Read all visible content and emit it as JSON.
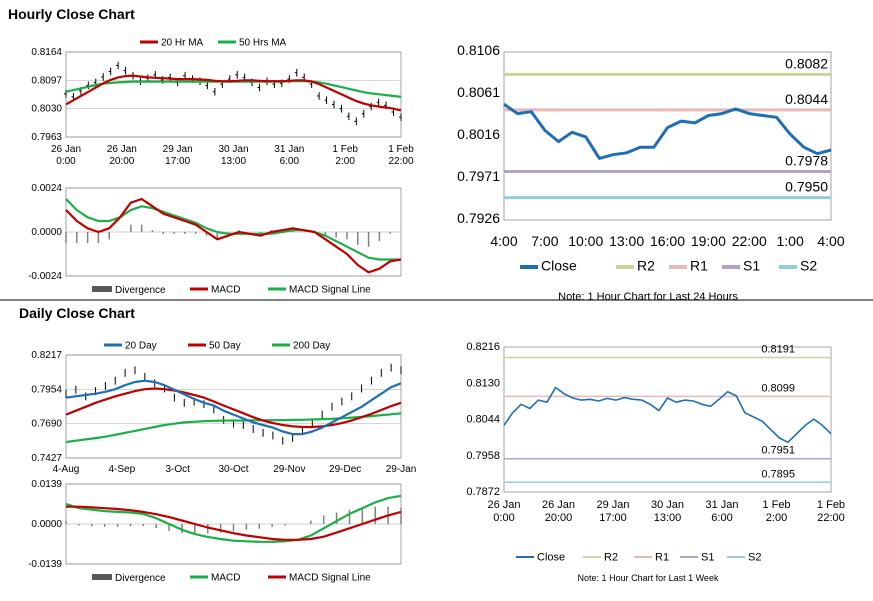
{
  "sections": {
    "hourly_title": "Hourly Close Chart",
    "daily_title": "Daily Close Chart"
  },
  "colors": {
    "red": "#c00000",
    "green": "#1aaf48",
    "blue": "#1f6fb4",
    "r2": "#c3d69b",
    "r1": "#e6b9b8",
    "s1": "#b3a2c7",
    "s2": "#93cddd",
    "gray": "#808080",
    "grid": "#bfbfbf"
  },
  "chart_data": [
    {
      "id": "hourly-price",
      "type": "line",
      "legend": [
        "20 Hr MA",
        "50 Hrs MA"
      ],
      "yticks": [
        "0.8164",
        "0.8097",
        "0.8030",
        "0.7963"
      ],
      "ylim": [
        0.7963,
        0.8164
      ],
      "xticks": [
        [
          "26 Jan",
          "0:00"
        ],
        [
          "26 Jan",
          "20:00"
        ],
        [
          "29 Jan",
          "17:00"
        ],
        [
          "30 Jan",
          "13:00"
        ],
        [
          "31 Jan",
          "6:00"
        ],
        [
          "1 Feb",
          "2:00"
        ],
        [
          "1 Feb",
          "22:00"
        ]
      ],
      "close": [
        0.8065,
        0.8058,
        0.8072,
        0.8085,
        0.8092,
        0.8105,
        0.8118,
        0.8132,
        0.812,
        0.8108,
        0.8095,
        0.8102,
        0.811,
        0.8098,
        0.8104,
        0.8092,
        0.8108,
        0.81,
        0.8095,
        0.8085,
        0.807,
        0.8088,
        0.81,
        0.811,
        0.8104,
        0.8092,
        0.808,
        0.8095,
        0.8088,
        0.809,
        0.81,
        0.8115,
        0.8104,
        0.8088,
        0.806,
        0.805,
        0.804,
        0.803,
        0.8012,
        0.8,
        0.8018,
        0.8035,
        0.8045,
        0.8038,
        0.8022,
        0.801
      ],
      "ma20": [
        0.804,
        0.805,
        0.806,
        0.807,
        0.808,
        0.809,
        0.8098,
        0.8104,
        0.8107,
        0.8108,
        0.8106,
        0.8104,
        0.8103,
        0.8102,
        0.8101,
        0.81,
        0.81,
        0.81,
        0.8099,
        0.8098,
        0.8096,
        0.8095,
        0.8095,
        0.8096,
        0.8097,
        0.8097,
        0.8096,
        0.8095,
        0.8095,
        0.8095,
        0.8096,
        0.8097,
        0.8097,
        0.8094,
        0.8088,
        0.808,
        0.8072,
        0.8064,
        0.8056,
        0.8048,
        0.8042,
        0.8038,
        0.8035,
        0.8033,
        0.803,
        0.8026
      ],
      "ma50": [
        0.807,
        0.8074,
        0.8078,
        0.8082,
        0.8086,
        0.8089,
        0.8091,
        0.8092,
        0.8093,
        0.8094,
        0.8094,
        0.8094,
        0.8094,
        0.8094,
        0.8094,
        0.8094,
        0.8094,
        0.8094,
        0.8094,
        0.8094,
        0.8094,
        0.8094,
        0.8094,
        0.8094,
        0.8094,
        0.8094,
        0.8094,
        0.8094,
        0.8094,
        0.8094,
        0.8095,
        0.8095,
        0.8095,
        0.8094,
        0.8092,
        0.8089,
        0.8085,
        0.8081,
        0.8077,
        0.8073,
        0.8069,
        0.8066,
        0.8064,
        0.8062,
        0.806,
        0.8058
      ]
    },
    {
      "id": "hourly-macd",
      "type": "line",
      "legend": [
        "Divergence",
        "MACD",
        "MACD Signal Line"
      ],
      "yticks": [
        "0.0024",
        "0.0000",
        "-0.0024"
      ],
      "ylim": [
        -0.0024,
        0.0024
      ],
      "macd": [
        0.0012,
        0.0006,
        0.0002,
        0.0,
        0.0002,
        0.0008,
        0.0016,
        0.0018,
        0.0014,
        0.001,
        0.0008,
        0.0006,
        0.0004,
        0.0,
        -0.0004,
        -0.0002,
        0.0,
        -0.0001,
        -0.0002,
        0.0,
        0.0001,
        0.0002,
        0.0001,
        0.0,
        -0.0004,
        -0.0008,
        -0.0012,
        -0.0018,
        -0.0022,
        -0.002,
        -0.0016,
        -0.0015
      ],
      "signal": [
        0.0018,
        0.0012,
        0.0008,
        0.0006,
        0.0006,
        0.0008,
        0.0012,
        0.0014,
        0.0013,
        0.0011,
        0.0009,
        0.0007,
        0.0005,
        0.0002,
        0.0,
        -0.0001,
        -0.0001,
        -0.0001,
        -0.0001,
        -0.0001,
        0.0,
        0.0001,
        0.0001,
        0.0,
        -0.0002,
        -0.0005,
        -0.0008,
        -0.0011,
        -0.0014,
        -0.0015,
        -0.0015,
        -0.0015
      ]
    },
    {
      "id": "hourly-24h",
      "type": "line",
      "yticks": [
        "0.8106",
        "0.8061",
        "0.8016",
        "0.7971",
        "0.7926"
      ],
      "ylim": [
        0.7926,
        0.8106
      ],
      "xticks": [
        "4:00",
        "7:00",
        "10:00",
        "13:00",
        "16:00",
        "19:00",
        "22:00",
        "1:00",
        "4:00"
      ],
      "close": [
        0.805,
        0.804,
        0.8042,
        0.8022,
        0.801,
        0.802,
        0.8015,
        0.7992,
        0.7996,
        0.7998,
        0.8004,
        0.8004,
        0.8025,
        0.8032,
        0.803,
        0.8038,
        0.804,
        0.8045,
        0.804,
        0.8038,
        0.8036,
        0.8018,
        0.8004,
        0.7997,
        0.8001
      ],
      "levels": [
        {
          "name": "R2",
          "value": 0.8082,
          "label": "0.8082",
          "color": "#c3d69b"
        },
        {
          "name": "R1",
          "value": 0.8044,
          "label": "0.8044",
          "color": "#e6b9b8"
        },
        {
          "name": "S1",
          "value": 0.7978,
          "label": "0.7978",
          "color": "#b3a2c7"
        },
        {
          "name": "S2",
          "value": 0.795,
          "label": "0.7950",
          "color": "#93cddd"
        }
      ],
      "legend": [
        "Close",
        "R2",
        "R1",
        "S1",
        "S2"
      ],
      "note": "Note: 1 Hour Chart for Last 24 Hours"
    },
    {
      "id": "daily-price",
      "type": "line",
      "legend": [
        "20 Day",
        "50 Day",
        "200 Day"
      ],
      "yticks": [
        "0.8217",
        "0.7954",
        "0.7690",
        "0.7427"
      ],
      "ylim": [
        0.7427,
        0.8217
      ],
      "xticks": [
        "4-Aug",
        "4-Sep",
        "3-Oct",
        "30-Oct",
        "29-Nov",
        "29-Dec",
        "29-Jan"
      ],
      "close": [
        0.792,
        0.795,
        0.79,
        0.794,
        0.798,
        0.802,
        0.808,
        0.81,
        0.805,
        0.8,
        0.796,
        0.789,
        0.785,
        0.786,
        0.784,
        0.78,
        0.772,
        0.769,
        0.768,
        0.765,
        0.762,
        0.76,
        0.756,
        0.758,
        0.764,
        0.77,
        0.776,
        0.782,
        0.786,
        0.79,
        0.796,
        0.802,
        0.808,
        0.812,
        0.81
      ],
      "ma20": [
        0.789,
        0.79,
        0.791,
        0.792,
        0.7935,
        0.7955,
        0.7985,
        0.801,
        0.802,
        0.801,
        0.7985,
        0.795,
        0.7915,
        0.788,
        0.785,
        0.783,
        0.779,
        0.776,
        0.773,
        0.77,
        0.768,
        0.766,
        0.763,
        0.761,
        0.761,
        0.763,
        0.766,
        0.77,
        0.774,
        0.778,
        0.782,
        0.787,
        0.792,
        0.797,
        0.8
      ],
      "ma50": [
        0.776,
        0.779,
        0.782,
        0.785,
        0.7875,
        0.79,
        0.792,
        0.794,
        0.7955,
        0.796,
        0.7955,
        0.7945,
        0.793,
        0.791,
        0.789,
        0.786,
        0.783,
        0.78,
        0.777,
        0.774,
        0.7715,
        0.7695,
        0.768,
        0.767,
        0.7665,
        0.7665,
        0.767,
        0.768,
        0.7695,
        0.7715,
        0.774,
        0.7765,
        0.7795,
        0.7825,
        0.785
      ],
      "ma200": [
        0.755,
        0.756,
        0.757,
        0.758,
        0.759,
        0.7605,
        0.762,
        0.7635,
        0.765,
        0.7665,
        0.768,
        0.769,
        0.77,
        0.7705,
        0.771,
        0.7712,
        0.7714,
        0.7715,
        0.7715,
        0.7716,
        0.7716,
        0.7717,
        0.7718,
        0.7719,
        0.772,
        0.7722,
        0.7725,
        0.7728,
        0.7732,
        0.7737,
        0.7742,
        0.7748,
        0.7755,
        0.7762,
        0.777
      ]
    },
    {
      "id": "daily-macd",
      "type": "line",
      "legend": [
        "Divergence",
        "MACD",
        "MACD Signal Line"
      ],
      "yticks": [
        "0.0139",
        "0.0000",
        "-0.0139"
      ],
      "ylim": [
        -0.0139,
        0.0139
      ],
      "macd": [
        0.007,
        0.0055,
        0.005,
        0.0045,
        0.0042,
        0.004,
        0.0035,
        0.002,
        0.0,
        -0.002,
        -0.0035,
        -0.0045,
        -0.0052,
        -0.0058,
        -0.006,
        -0.0062,
        -0.0062,
        -0.006,
        -0.0055,
        -0.004,
        -0.0015,
        0.001,
        0.0035,
        0.0055,
        0.0075,
        0.009,
        0.0098
      ],
      "signal": [
        0.006,
        0.006,
        0.0058,
        0.0055,
        0.0052,
        0.0048,
        0.0042,
        0.0034,
        0.0024,
        0.0012,
        0.0,
        -0.0012,
        -0.0022,
        -0.0032,
        -0.004,
        -0.0046,
        -0.0052,
        -0.0055,
        -0.0055,
        -0.0052,
        -0.0044,
        -0.003,
        -0.0015,
        0.0,
        0.0015,
        0.003,
        0.0042
      ]
    },
    {
      "id": "weekly",
      "type": "line",
      "yticks": [
        "0.8216",
        "0.8130",
        "0.8044",
        "0.7958",
        "0.7872"
      ],
      "ylim": [
        0.7872,
        0.8216
      ],
      "xticks": [
        [
          "26 Jan",
          "0:00"
        ],
        [
          "26 Jan",
          "20:00"
        ],
        [
          "29 Jan",
          "17:00"
        ],
        [
          "30 Jan",
          "13:00"
        ],
        [
          "31 Jan",
          "6:00"
        ],
        [
          "1 Feb",
          "2:00"
        ],
        [
          "1 Feb",
          "22:00"
        ]
      ],
      "close": [
        0.803,
        0.806,
        0.808,
        0.807,
        0.809,
        0.8085,
        0.812,
        0.8105,
        0.8095,
        0.809,
        0.8092,
        0.8088,
        0.8094,
        0.809,
        0.8096,
        0.8092,
        0.809,
        0.808,
        0.8065,
        0.8095,
        0.8085,
        0.809,
        0.8088,
        0.808,
        0.8075,
        0.8092,
        0.811,
        0.81,
        0.806,
        0.805,
        0.804,
        0.802,
        0.8,
        0.799,
        0.801,
        0.803,
        0.8045,
        0.803,
        0.801
      ],
      "levels": [
        {
          "name": "R2",
          "value": 0.8191,
          "label": "0.8191",
          "color": "#c3d69b"
        },
        {
          "name": "R1",
          "value": 0.8099,
          "label": "0.8099",
          "color": "#e6b9b8"
        },
        {
          "name": "S1",
          "value": 0.7951,
          "label": "0.7951",
          "color": "#b3a2c7"
        },
        {
          "name": "S2",
          "value": 0.7895,
          "label": "0.7895",
          "color": "#93cddd"
        }
      ],
      "legend": [
        "Close",
        "R2",
        "R1",
        "S1",
        "S2"
      ],
      "note": "Note: 1 Hour Chart for Last 1 Week"
    }
  ]
}
